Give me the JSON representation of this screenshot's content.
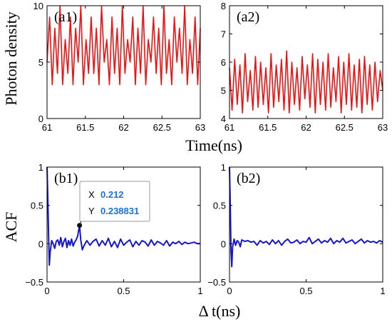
{
  "chart_data": [
    {
      "panel": "(a1)",
      "type": "line",
      "xlim": [
        61,
        63
      ],
      "ylim": [
        0,
        10
      ],
      "xticks": [
        "61",
        "61.5",
        "62",
        "62.5",
        "63"
      ],
      "yticks": [
        "0",
        "5",
        "10"
      ],
      "ylabel": "Photon density",
      "series": [
        {
          "color": "#ee1111",
          "values": [
            5,
            9,
            3,
            8,
            4,
            10,
            3,
            7,
            4,
            9,
            3,
            8,
            5,
            10,
            3,
            7,
            4,
            9,
            4,
            8,
            3,
            10,
            5,
            7,
            3,
            9,
            4,
            8,
            3,
            10,
            4,
            7,
            5,
            9,
            3,
            8,
            4,
            10,
            3,
            7,
            5,
            9,
            4,
            8,
            3,
            10,
            4,
            7,
            3,
            9,
            5,
            8,
            4,
            10,
            3,
            7,
            4,
            9,
            3,
            8
          ]
        }
      ]
    },
    {
      "panel": "(a2)",
      "type": "line",
      "xlim": [
        61,
        63
      ],
      "ylim": [
        4,
        8
      ],
      "xticks": [
        "61",
        "61.5",
        "62",
        "62.5",
        "63"
      ],
      "yticks": [
        "4",
        "5",
        "6",
        "7",
        "8"
      ],
      "series": [
        {
          "color": "#ee1111",
          "values": [
            5.8,
            4.3,
            6.1,
            4.5,
            5.9,
            4.2,
            6.3,
            4.6,
            5.7,
            4.3,
            6.2,
            4.4,
            6.0,
            4.5,
            5.8,
            4.2,
            6.3,
            4.4,
            5.9,
            4.6,
            6.1,
            4.3,
            6.4,
            4.2,
            6.0,
            4.5,
            5.8,
            4.3,
            6.2,
            4.7,
            5.9,
            4.4,
            6.3,
            4.2,
            6.1,
            4.5,
            6.0,
            4.3,
            6.3,
            4.4,
            5.8,
            4.6,
            6.2,
            4.2,
            6.0,
            4.5,
            6.3,
            4.3,
            5.9,
            4.4,
            6.1,
            4.2,
            6.2,
            4.5,
            5.9,
            4.3,
            6.0,
            4.6,
            5.7,
            5.0
          ]
        }
      ]
    },
    {
      "panel": "(b1)",
      "type": "line",
      "xlim": [
        0,
        1
      ],
      "ylim": [
        -0.5,
        1
      ],
      "xticks": [
        "0",
        "0.5",
        "1"
      ],
      "yticks": [
        "-0.5",
        "0",
        "0.5",
        "1"
      ],
      "ylabel": "ACF",
      "series": [
        {
          "color": "#1616cc",
          "x": [
            0,
            0.005,
            0.01,
            0.015,
            0.02,
            0.03,
            0.04,
            0.05,
            0.06,
            0.07,
            0.08,
            0.09,
            0.1,
            0.11,
            0.12,
            0.13,
            0.14,
            0.15,
            0.16,
            0.17,
            0.18,
            0.19,
            0.2,
            0.212,
            0.22,
            0.23,
            0.24,
            0.26,
            0.28,
            0.3,
            0.32,
            0.34,
            0.36,
            0.38,
            0.4,
            0.42,
            0.44,
            0.46,
            0.48,
            0.5,
            0.52,
            0.54,
            0.56,
            0.58,
            0.6,
            0.62,
            0.64,
            0.66,
            0.68,
            0.7,
            0.72,
            0.74,
            0.76,
            0.78,
            0.8,
            0.82,
            0.84,
            0.86,
            0.88,
            0.9,
            0.92,
            0.94,
            0.96,
            0.98,
            1.0
          ],
          "values": [
            1.0,
            0.6,
            0.1,
            -0.28,
            -0.12,
            0.04,
            0.0,
            -0.06,
            0.03,
            0.05,
            -0.02,
            0.08,
            -0.04,
            0.03,
            0.07,
            -0.05,
            0.04,
            -0.02,
            0.06,
            -0.03,
            0.02,
            0.05,
            0.1,
            0.238831,
            0.05,
            -0.08,
            -0.03,
            0.04,
            -0.02,
            0.03,
            0.06,
            -0.03,
            0.04,
            -0.02,
            0.07,
            -0.04,
            0.03,
            -0.05,
            0.06,
            -0.02,
            0.02,
            0.05,
            -0.04,
            0.03,
            -0.02,
            0.04,
            0.02,
            -0.03,
            0.05,
            -0.02,
            0.03,
            0.01,
            -0.02,
            0.04,
            -0.03,
            0.02,
            0.0,
            0.03,
            -0.01,
            0.02,
            0.0,
            0.01,
            0.02,
            0.0,
            0.0
          ]
        }
      ],
      "datatip": {
        "x": 0.212,
        "y": 0.238831,
        "x_label": "X",
        "y_label": "Y",
        "x_text": "0.212",
        "y_text": "0.238831"
      }
    },
    {
      "panel": "(b2)",
      "type": "line",
      "xlim": [
        0,
        1
      ],
      "ylim": [
        -0.5,
        1
      ],
      "xticks": [
        "0",
        "0.5",
        "1"
      ],
      "yticks": [
        "-0.5",
        "0",
        "0.5",
        "1"
      ],
      "series": [
        {
          "color": "#1616cc",
          "x": [
            0,
            0.005,
            0.01,
            0.015,
            0.02,
            0.03,
            0.04,
            0.05,
            0.06,
            0.07,
            0.08,
            0.1,
            0.12,
            0.14,
            0.16,
            0.18,
            0.2,
            0.22,
            0.24,
            0.26,
            0.28,
            0.3,
            0.32,
            0.34,
            0.36,
            0.38,
            0.4,
            0.42,
            0.44,
            0.46,
            0.48,
            0.5,
            0.52,
            0.54,
            0.56,
            0.58,
            0.6,
            0.62,
            0.64,
            0.66,
            0.68,
            0.7,
            0.72,
            0.74,
            0.76,
            0.78,
            0.8,
            0.82,
            0.84,
            0.86,
            0.88,
            0.9,
            0.92,
            0.94,
            0.96,
            0.98,
            1.0
          ],
          "values": [
            1.0,
            0.5,
            -0.1,
            -0.3,
            -0.05,
            0.06,
            -0.02,
            0.04,
            0.02,
            -0.04,
            0.05,
            0.03,
            0.04,
            0.02,
            0.03,
            -0.02,
            0.04,
            0.01,
            0.03,
            -0.01,
            0.05,
            0.0,
            0.04,
            -0.02,
            0.03,
            0.06,
            0.01,
            0.02,
            0.05,
            0.0,
            0.03,
            0.02,
            0.08,
            0.0,
            0.03,
            0.06,
            0.01,
            0.04,
            0.02,
            0.07,
            0.0,
            0.04,
            0.02,
            0.07,
            0.01,
            0.03,
            0.05,
            0.0,
            0.03,
            0.06,
            0.01,
            0.04,
            0.02,
            0.03,
            0.01,
            0.04,
            0.02
          ]
        }
      ]
    }
  ],
  "shared": {
    "top_xlabel": "Time(ns)",
    "bottom_xlabel": "Δ t(ns)"
  }
}
